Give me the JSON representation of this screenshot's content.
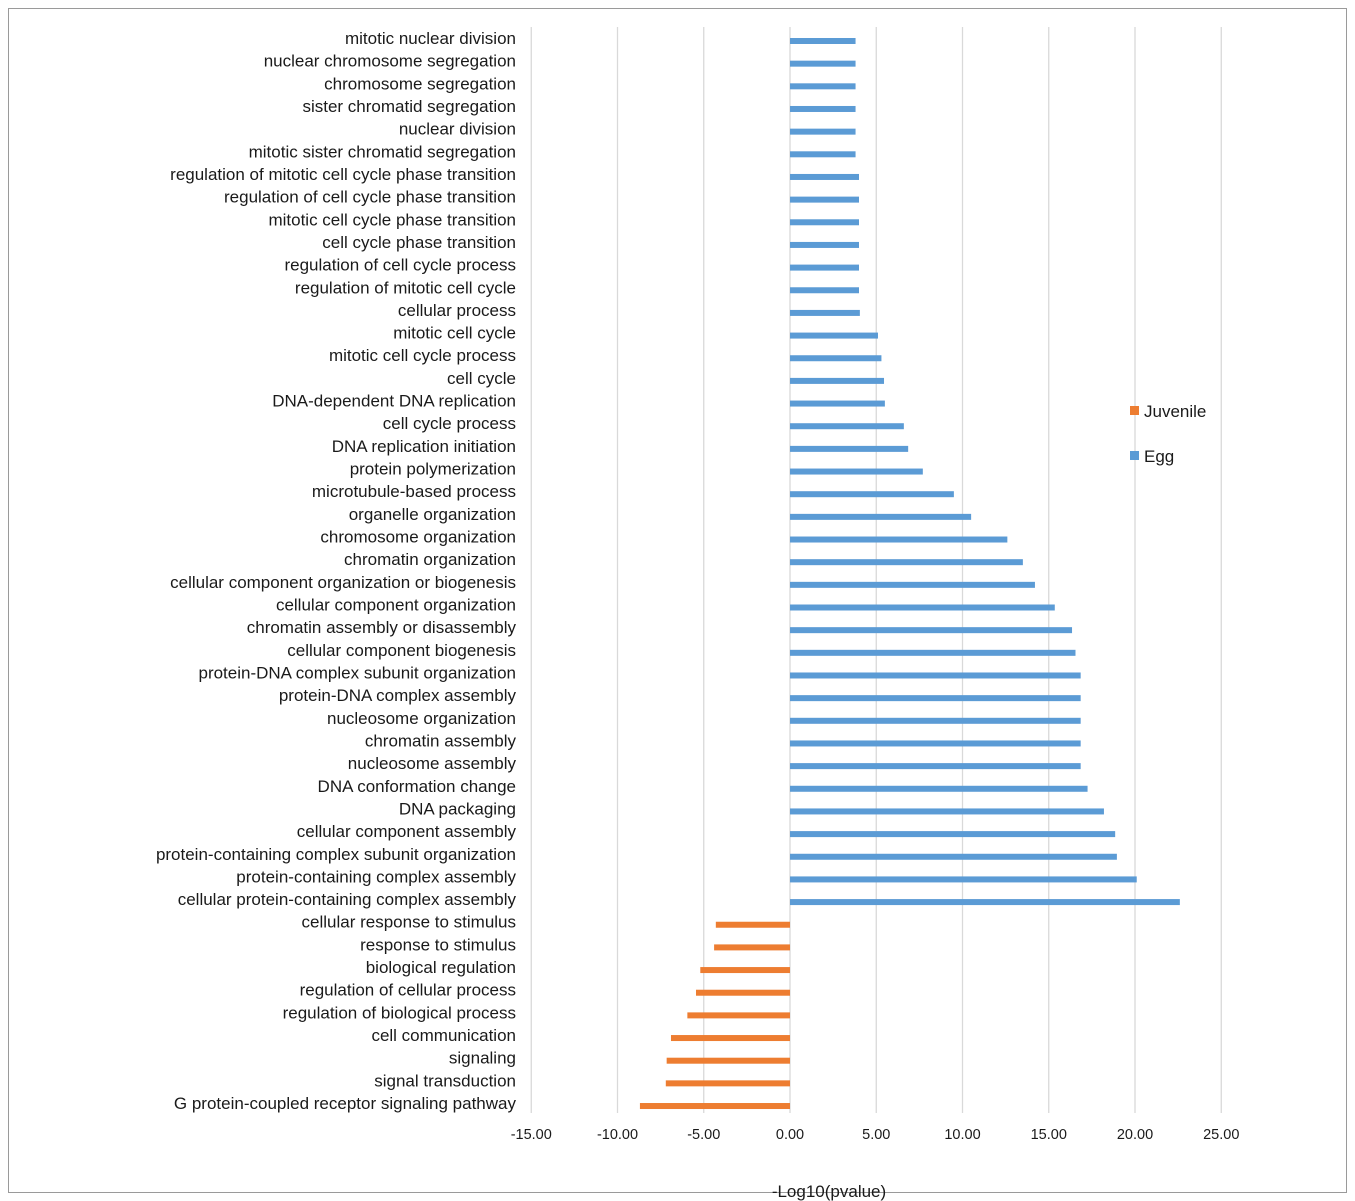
{
  "chart_data": {
    "type": "bar",
    "orientation": "horizontal",
    "xlabel": "-Log10(pvalue)",
    "xlim": [
      -15,
      25
    ],
    "xticks": [
      "-15.00",
      "-10.00",
      "-5.00",
      "0.00",
      "5.00",
      "10.00",
      "15.00",
      "20.00",
      "25.00"
    ],
    "xtick_values": [
      -15,
      -10,
      -5,
      0,
      5,
      10,
      15,
      20,
      25
    ],
    "grid": "vertical",
    "legend_position": "right",
    "legend": [
      {
        "name": "Juvenile",
        "color": "#ED7D31"
      },
      {
        "name": "Egg",
        "color": "#5B9BD5"
      }
    ],
    "series": [
      {
        "name": "Egg",
        "color": "#5B9BD5"
      },
      {
        "name": "Juvenile",
        "color": "#ED7D31"
      }
    ],
    "bars": [
      {
        "label": "mitotic nuclear division",
        "value": 3.8,
        "series": "Egg"
      },
      {
        "label": "nuclear chromosome segregation",
        "value": 3.8,
        "series": "Egg"
      },
      {
        "label": "chromosome segregation",
        "value": 3.8,
        "series": "Egg"
      },
      {
        "label": "sister chromatid segregation",
        "value": 3.8,
        "series": "Egg"
      },
      {
        "label": "nuclear division",
        "value": 3.8,
        "series": "Egg"
      },
      {
        "label": "mitotic sister chromatid segregation",
        "value": 3.8,
        "series": "Egg"
      },
      {
        "label": "regulation of mitotic cell cycle phase transition",
        "value": 4.0,
        "series": "Egg"
      },
      {
        "label": "regulation of cell cycle phase transition",
        "value": 4.0,
        "series": "Egg"
      },
      {
        "label": "mitotic cell cycle phase transition",
        "value": 4.0,
        "series": "Egg"
      },
      {
        "label": "cell cycle phase transition",
        "value": 4.0,
        "series": "Egg"
      },
      {
        "label": "regulation of cell cycle process",
        "value": 4.0,
        "series": "Egg"
      },
      {
        "label": "regulation of mitotic cell cycle",
        "value": 4.0,
        "series": "Egg"
      },
      {
        "label": "cellular process",
        "value": 4.05,
        "series": "Egg"
      },
      {
        "label": "mitotic cell cycle",
        "value": 5.1,
        "series": "Egg"
      },
      {
        "label": "mitotic cell cycle process",
        "value": 5.3,
        "series": "Egg"
      },
      {
        "label": "cell cycle",
        "value": 5.45,
        "series": "Egg"
      },
      {
        "label": "DNA-dependent DNA replication",
        "value": 5.5,
        "series": "Egg"
      },
      {
        "label": "cell cycle process",
        "value": 6.6,
        "series": "Egg"
      },
      {
        "label": "DNA replication initiation",
        "value": 6.85,
        "series": "Egg"
      },
      {
        "label": "protein polymerization",
        "value": 7.7,
        "series": "Egg"
      },
      {
        "label": "microtubule-based process",
        "value": 9.5,
        "series": "Egg"
      },
      {
        "label": "organelle organization",
        "value": 10.5,
        "series": "Egg"
      },
      {
        "label": "chromosome organization",
        "value": 12.6,
        "series": "Egg"
      },
      {
        "label": "chromatin organization",
        "value": 13.5,
        "series": "Egg"
      },
      {
        "label": "cellular component organization or biogenesis",
        "value": 14.2,
        "series": "Egg"
      },
      {
        "label": "cellular component organization",
        "value": 15.35,
        "series": "Egg"
      },
      {
        "label": "chromatin assembly or disassembly",
        "value": 16.35,
        "series": "Egg"
      },
      {
        "label": "cellular component biogenesis",
        "value": 16.55,
        "series": "Egg"
      },
      {
        "label": "protein-DNA complex subunit organization",
        "value": 16.85,
        "series": "Egg"
      },
      {
        "label": "protein-DNA complex assembly",
        "value": 16.85,
        "series": "Egg"
      },
      {
        "label": "nucleosome organization",
        "value": 16.85,
        "series": "Egg"
      },
      {
        "label": "chromatin assembly",
        "value": 16.85,
        "series": "Egg"
      },
      {
        "label": "nucleosome assembly",
        "value": 16.85,
        "series": "Egg"
      },
      {
        "label": "DNA conformation change",
        "value": 17.25,
        "series": "Egg"
      },
      {
        "label": "DNA packaging",
        "value": 18.2,
        "series": "Egg"
      },
      {
        "label": "cellular component assembly",
        "value": 18.85,
        "series": "Egg"
      },
      {
        "label": "protein-containing complex subunit organization",
        "value": 18.95,
        "series": "Egg"
      },
      {
        "label": "protein-containing complex assembly",
        "value": 20.1,
        "series": "Egg"
      },
      {
        "label": "cellular protein-containing complex assembly",
        "value": 22.6,
        "series": "Egg"
      },
      {
        "label": "cellular response to stimulus",
        "value": -4.3,
        "series": "Juvenile"
      },
      {
        "label": "response to stimulus",
        "value": -4.4,
        "series": "Juvenile"
      },
      {
        "label": "biological regulation",
        "value": -5.2,
        "series": "Juvenile"
      },
      {
        "label": "regulation of cellular process",
        "value": -5.45,
        "series": "Juvenile"
      },
      {
        "label": "regulation of biological process",
        "value": -5.95,
        "series": "Juvenile"
      },
      {
        "label": "cell communication",
        "value": -6.9,
        "series": "Juvenile"
      },
      {
        "label": "signaling",
        "value": -7.15,
        "series": "Juvenile"
      },
      {
        "label": "signal transduction",
        "value": -7.2,
        "series": "Juvenile"
      },
      {
        "label": "G protein-coupled receptor signaling pathway",
        "value": -8.7,
        "series": "Juvenile"
      }
    ]
  }
}
